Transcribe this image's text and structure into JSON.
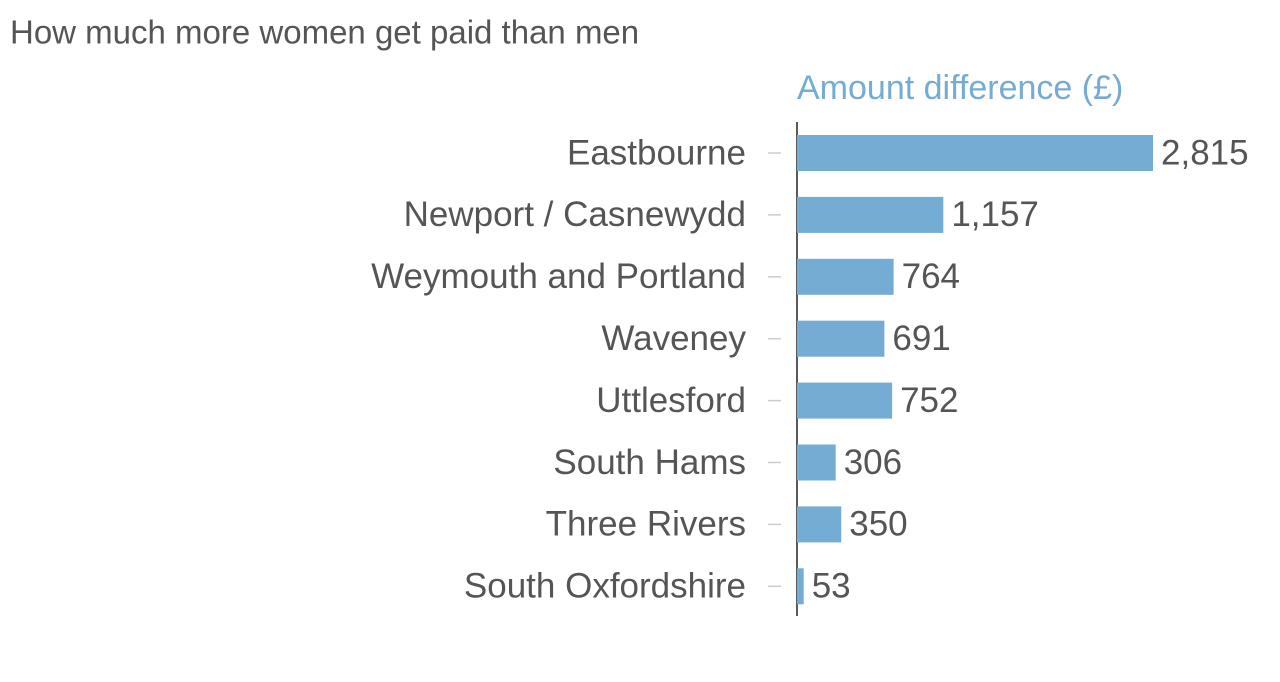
{
  "chart_data": {
    "type": "bar",
    "orientation": "horizontal",
    "title": "How much more women get paid than men",
    "subtitle": "Amount difference (£)",
    "categories": [
      "Eastbourne",
      "Newport / Casnewydd",
      "Weymouth and Portland",
      "Waveney",
      "Uttlesford",
      "South Hams",
      "Three Rivers",
      "South Oxfordshire"
    ],
    "values": [
      2815,
      1157,
      764,
      691,
      752,
      306,
      350,
      53
    ],
    "value_labels": [
      "2,815",
      "1,157",
      "764",
      "691",
      "752",
      "306",
      "350",
      "53"
    ],
    "color": "#74acd3"
  }
}
